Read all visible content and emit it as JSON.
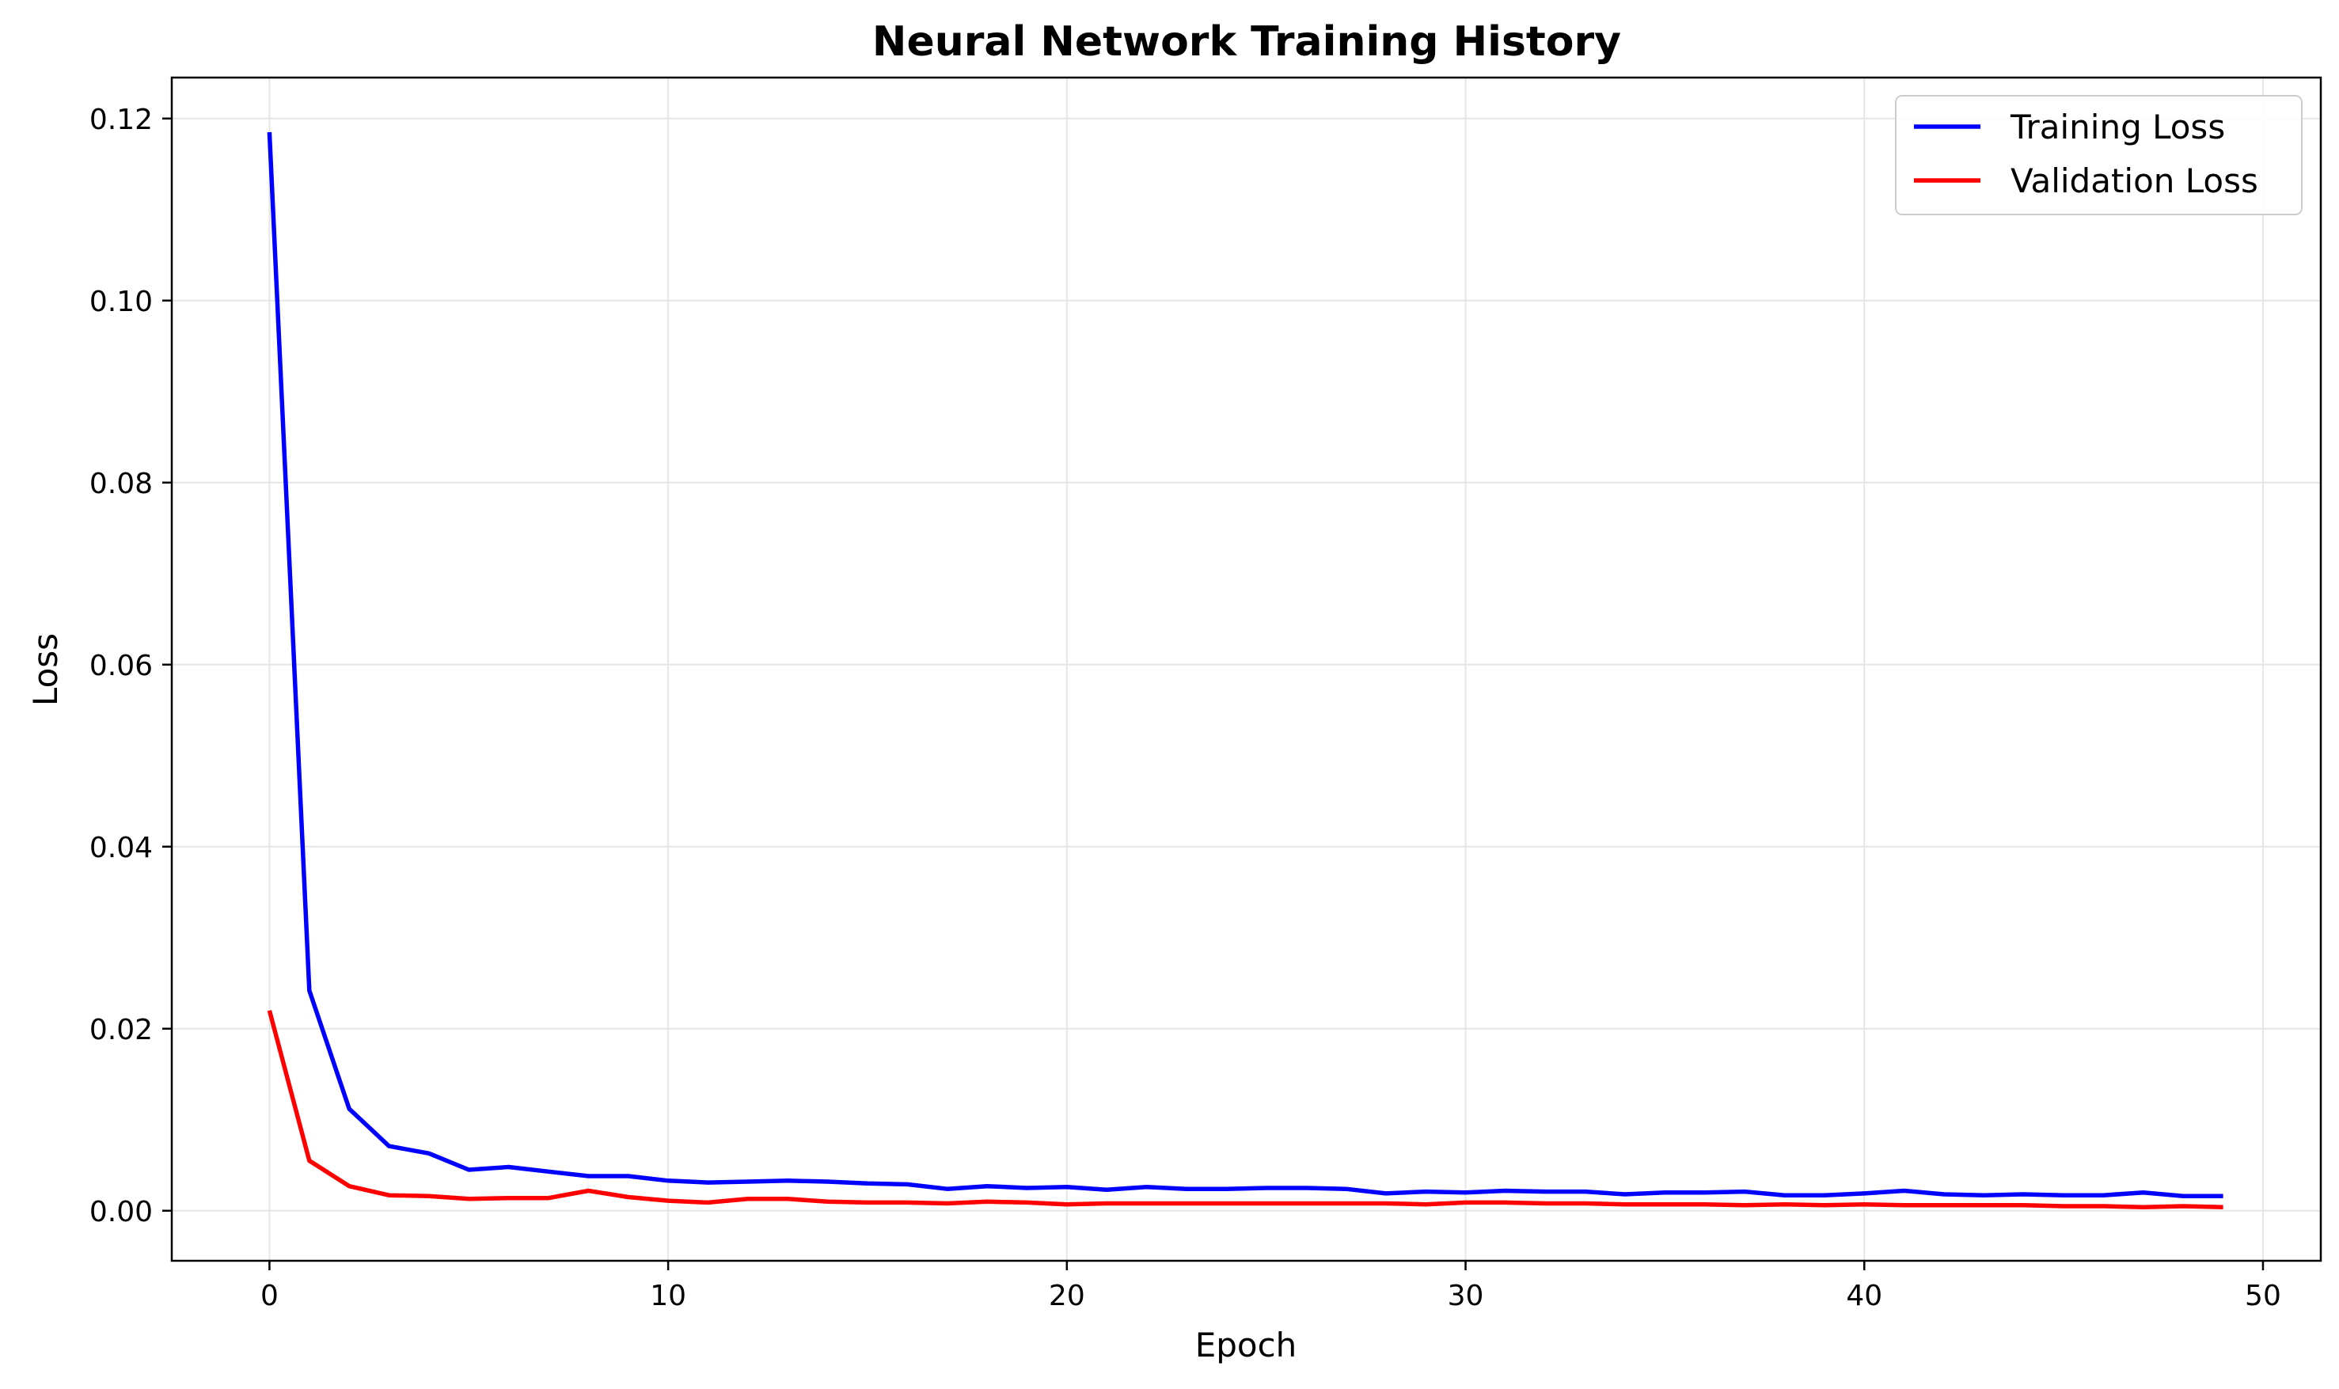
{
  "chart_data": {
    "type": "line",
    "title": "Neural Network Training History",
    "xlabel": "Epoch",
    "ylabel": "Loss",
    "xlim": [
      -2.45,
      51.45
    ],
    "ylim": [
      -0.0055,
      0.1245
    ],
    "xticks": [
      0,
      10,
      20,
      30,
      40,
      50
    ],
    "xtick_labels": [
      "0",
      "10",
      "20",
      "30",
      "40",
      "50"
    ],
    "yticks": [
      0.0,
      0.02,
      0.04,
      0.06,
      0.08,
      0.1,
      0.12
    ],
    "ytick_labels": [
      "0.00",
      "0.02",
      "0.04",
      "0.06",
      "0.08",
      "0.10",
      "0.12"
    ],
    "grid": true,
    "legend_position": "upper right",
    "x": [
      0,
      1,
      2,
      3,
      4,
      5,
      6,
      7,
      8,
      9,
      10,
      11,
      12,
      13,
      14,
      15,
      16,
      17,
      18,
      19,
      20,
      21,
      22,
      23,
      24,
      25,
      26,
      27,
      28,
      29,
      30,
      31,
      32,
      33,
      34,
      35,
      36,
      37,
      38,
      39,
      40,
      41,
      42,
      43,
      44,
      45,
      46,
      47,
      48,
      49
    ],
    "series": [
      {
        "name": "Training Loss",
        "color": "#0000ff",
        "values": [
          0.1185,
          0.0242,
          0.0112,
          0.0071,
          0.0063,
          0.0045,
          0.0048,
          0.0043,
          0.0038,
          0.0038,
          0.0033,
          0.0031,
          0.0032,
          0.0033,
          0.0032,
          0.003,
          0.0029,
          0.0024,
          0.0027,
          0.0025,
          0.0026,
          0.0023,
          0.0026,
          0.0024,
          0.0024,
          0.0025,
          0.0025,
          0.0024,
          0.0019,
          0.0021,
          0.002,
          0.0022,
          0.0021,
          0.0021,
          0.0018,
          0.002,
          0.002,
          0.0021,
          0.0017,
          0.0017,
          0.0019,
          0.0022,
          0.0018,
          0.0017,
          0.0018,
          0.0017,
          0.0017,
          0.002,
          0.0016,
          0.0016
        ]
      },
      {
        "name": "Validation Loss",
        "color": "#ff0000",
        "values": [
          0.022,
          0.0055,
          0.0027,
          0.0017,
          0.0016,
          0.0013,
          0.0014,
          0.0014,
          0.0022,
          0.0015,
          0.0011,
          0.0009,
          0.0013,
          0.0013,
          0.001,
          0.0009,
          0.0009,
          0.0008,
          0.001,
          0.0009,
          0.0007,
          0.0008,
          0.0008,
          0.0008,
          0.0008,
          0.0008,
          0.0008,
          0.0008,
          0.0008,
          0.0007,
          0.0009,
          0.0009,
          0.0008,
          0.0008,
          0.0007,
          0.0007,
          0.0007,
          0.0006,
          0.0007,
          0.0006,
          0.0007,
          0.0006,
          0.0006,
          0.0006,
          0.0006,
          0.0005,
          0.0005,
          0.0004,
          0.0005,
          0.0004
        ]
      }
    ]
  }
}
